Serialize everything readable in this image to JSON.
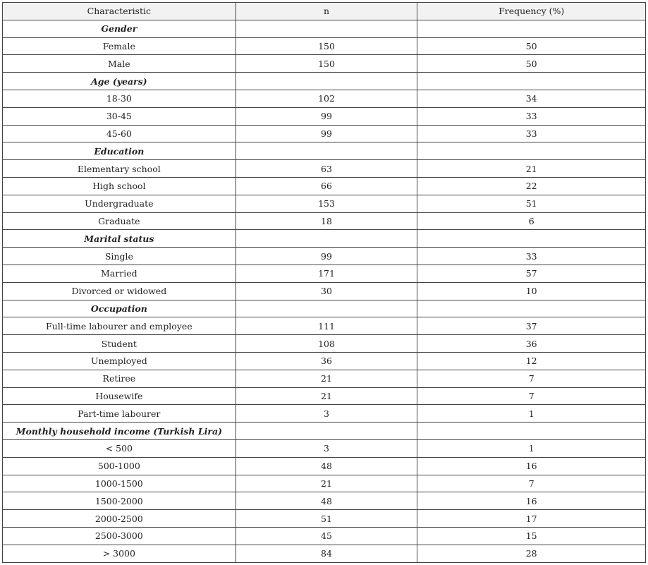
{
  "table": {
    "headers": [
      "Characteristic",
      "n",
      "Frequency (%)"
    ],
    "rows": [
      {
        "type": "section",
        "label": "Gender",
        "n": "",
        "freq": ""
      },
      {
        "type": "row",
        "label": "Female",
        "n": "150",
        "freq": "50"
      },
      {
        "type": "row",
        "label": "Male",
        "n": "150",
        "freq": "50"
      },
      {
        "type": "section",
        "label": "Age (years)",
        "n": "",
        "freq": ""
      },
      {
        "type": "row",
        "label": "18-30",
        "n": "102",
        "freq": "34"
      },
      {
        "type": "row",
        "label": "30-45",
        "n": "99",
        "freq": "33"
      },
      {
        "type": "row",
        "label": "45-60",
        "n": "99",
        "freq": "33"
      },
      {
        "type": "section",
        "label": "Education",
        "n": "",
        "freq": ""
      },
      {
        "type": "row",
        "label": "Elementary school",
        "n": "63",
        "freq": "21"
      },
      {
        "type": "row",
        "label": "High school",
        "n": "66",
        "freq": "22"
      },
      {
        "type": "row",
        "label": "Undergraduate",
        "n": "153",
        "freq": "51"
      },
      {
        "type": "row",
        "label": "Graduate",
        "n": "18",
        "freq": "6"
      },
      {
        "type": "section",
        "label": "Marital status",
        "n": "",
        "freq": ""
      },
      {
        "type": "row",
        "label": "Single",
        "n": "99",
        "freq": "33"
      },
      {
        "type": "row",
        "label": "Married",
        "n": "171",
        "freq": "57"
      },
      {
        "type": "row",
        "label": "Divorced or widowed",
        "n": "30",
        "freq": "10"
      },
      {
        "type": "section",
        "label": "Occupation",
        "n": "",
        "freq": ""
      },
      {
        "type": "row",
        "label": "Full-time labourer and employee",
        "n": "111",
        "freq": "37"
      },
      {
        "type": "row",
        "label": "Student",
        "n": "108",
        "freq": "36"
      },
      {
        "type": "row",
        "label": "Unemployed",
        "n": "36",
        "freq": "12"
      },
      {
        "type": "row",
        "label": "Retiree",
        "n": "21",
        "freq": "7"
      },
      {
        "type": "row",
        "label": "Housewife",
        "n": "21",
        "freq": "7"
      },
      {
        "type": "row",
        "label": "Part-time labourer",
        "n": "3",
        "freq": "1"
      },
      {
        "type": "section",
        "label": "Monthly household income (Turkish Lira)",
        "n": "",
        "freq": ""
      },
      {
        "type": "row",
        "label": "< 500",
        "n": "3",
        "freq": "1"
      },
      {
        "type": "row",
        "label": "500-1000",
        "n": "48",
        "freq": "16"
      },
      {
        "type": "row",
        "label": "1000-1500",
        "n": "21",
        "freq": "7"
      },
      {
        "type": "row",
        "label": "1500-2000",
        "n": "48",
        "freq": "16"
      },
      {
        "type": "row",
        "label": "2000-2500",
        "n": "51",
        "freq": "17"
      },
      {
        "type": "row",
        "label": "2500-3000",
        "n": "45",
        "freq": "15"
      },
      {
        "type": "row",
        "label": "> 3000",
        "n": "84",
        "freq": "28"
      }
    ]
  }
}
